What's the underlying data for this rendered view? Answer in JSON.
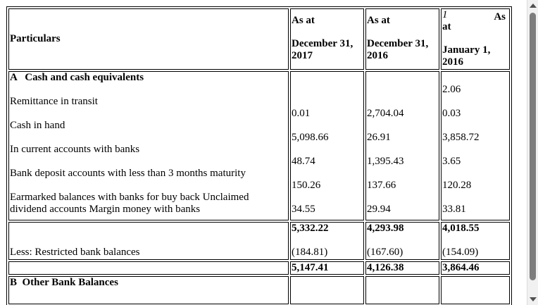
{
  "header": {
    "particulars": "Particulars",
    "col2017": {
      "line1": "As at",
      "line2": "December 31,",
      "line3": "2017"
    },
    "col2016": {
      "line1": "As at",
      "line2": "December 31,",
      "line3": "2016"
    },
    "col2016jan": {
      "mark": "1",
      "line1a": "As",
      "line1b": "at",
      "line2": "January 1,",
      "line3": "2016"
    }
  },
  "sectionA": {
    "title": "A   Cash and cash equivalents",
    "items": [
      {
        "label": "Remittance in transit"
      },
      {
        "label": "Cash in hand"
      },
      {
        "label": "In current accounts with banks"
      },
      {
        "label": "Bank deposit accounts with less than 3 months maturity"
      },
      {
        "label": "Earmarked balances with banks for buy back Unclaimed dividend accounts Margin money with banks"
      }
    ],
    "values2017": [
      "0.01",
      "5,098.66",
      "48.74",
      "150.26",
      "34.55"
    ],
    "values2016": [
      "2,704.04",
      "26.91",
      "1,395.43",
      "137.66",
      "29.94"
    ],
    "valuesJan2016": [
      "2.06",
      "0.03",
      "3,858.72",
      "3.65",
      "120.28",
      "33.81"
    ],
    "subtotal": {
      "v2017": "5,332.22",
      "v2016": "4,293.98",
      "vJan2016": "4,018.55"
    },
    "restricted": {
      "label": "Less: Restricted bank balances",
      "v2017": "(184.81)",
      "v2016": "(167.60)",
      "vJan2016": "(154.09)"
    },
    "total": {
      "v2017": "5,147.41",
      "v2016": "4,126.38",
      "vJan2016": "3,864.46"
    }
  },
  "sectionB": {
    "title": "B  Other Bank Balances"
  }
}
